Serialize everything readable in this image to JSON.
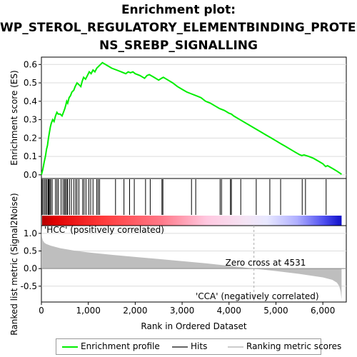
{
  "title_lines": [
    "Enrichment plot:",
    "WP_STEROL_REGULATORY_ELEMENTBINDING_PROTEI",
    "NS_SREBP_SIGNALLING"
  ],
  "colors": {
    "enrichment_line": "#00ee00",
    "hits": "#000000",
    "metric_fill": "#bebebe",
    "positive_label": "#ff0000",
    "negative_label": "#0000cc",
    "zero_line": "#aaaaaa"
  },
  "chart_data": [
    {
      "type": "line",
      "name": "enrichment-plot",
      "ylabel": "Enrichment score (ES)",
      "xlim": [
        0,
        6500
      ],
      "ylim": [
        -0.02,
        0.64
      ],
      "yticks": [
        0.0,
        0.1,
        0.2,
        0.3,
        0.4,
        0.5,
        0.6
      ],
      "ytick_labels": [
        "0.0",
        "0.1",
        "0.2",
        "0.3",
        "0.4",
        "0.5",
        "0.6"
      ],
      "grid": true,
      "series": [
        {
          "name": "Enrichment profile",
          "x": [
            0,
            30,
            60,
            85,
            110,
            130,
            150,
            170,
            190,
            210,
            240,
            270,
            300,
            330,
            360,
            400,
            440,
            470,
            500,
            520,
            540,
            560,
            590,
            620,
            650,
            690,
            720,
            760,
            800,
            840,
            870,
            900,
            940,
            980,
            1020,
            1060,
            1100,
            1140,
            1180,
            1220,
            1300,
            1400,
            1500,
            1600,
            1700,
            1750,
            1800,
            1850,
            1900,
            1950,
            2000,
            2100,
            2200,
            2250,
            2300,
            2400,
            2500,
            2560,
            2600,
            2700,
            2800,
            2900,
            3000,
            3100,
            3200,
            3300,
            3400,
            3500,
            3600,
            3700,
            3800,
            3900,
            4000,
            4050,
            4100,
            4200,
            4300,
            4400,
            4500,
            4600,
            4700,
            4800,
            4900,
            5000,
            5100,
            5200,
            5300,
            5400,
            5500,
            5550,
            5600,
            5700,
            5800,
            5900,
            6000,
            6060,
            6100,
            6200,
            6300,
            6400
          ],
          "y": [
            0.0,
            0.03,
            0.07,
            0.1,
            0.14,
            0.16,
            0.2,
            0.23,
            0.26,
            0.28,
            0.3,
            0.29,
            0.32,
            0.34,
            0.33,
            0.33,
            0.32,
            0.34,
            0.36,
            0.38,
            0.4,
            0.39,
            0.42,
            0.43,
            0.45,
            0.46,
            0.48,
            0.5,
            0.49,
            0.48,
            0.51,
            0.53,
            0.52,
            0.54,
            0.56,
            0.55,
            0.57,
            0.56,
            0.58,
            0.59,
            0.61,
            0.595,
            0.58,
            0.57,
            0.56,
            0.555,
            0.55,
            0.56,
            0.555,
            0.56,
            0.55,
            0.54,
            0.525,
            0.54,
            0.545,
            0.53,
            0.515,
            0.525,
            0.53,
            0.515,
            0.5,
            0.48,
            0.465,
            0.45,
            0.44,
            0.43,
            0.42,
            0.4,
            0.39,
            0.375,
            0.36,
            0.35,
            0.335,
            0.33,
            0.32,
            0.305,
            0.29,
            0.275,
            0.26,
            0.245,
            0.23,
            0.215,
            0.2,
            0.185,
            0.17,
            0.155,
            0.14,
            0.125,
            0.11,
            0.105,
            0.108,
            0.1,
            0.09,
            0.075,
            0.06,
            0.045,
            0.05,
            0.035,
            0.02,
            0.003
          ]
        }
      ]
    },
    {
      "type": "scatter",
      "name": "hits-rug",
      "xlim": [
        0,
        6500
      ],
      "x": [
        15,
        40,
        70,
        95,
        120,
        145,
        160,
        180,
        200,
        230,
        300,
        330,
        360,
        420,
        460,
        490,
        510,
        540,
        560,
        600,
        640,
        690,
        730,
        760,
        800,
        880,
        910,
        950,
        1010,
        1050,
        1100,
        1180,
        1210,
        1240,
        1580,
        1760,
        1880,
        1980,
        2220,
        2320,
        2570,
        2590,
        3200,
        3290,
        3810,
        3840,
        4030,
        4050,
        4250,
        4580,
        4870,
        5100,
        5560,
        5630,
        6070
      ]
    },
    {
      "type": "area",
      "name": "ranked-metric",
      "ylabel": "Ranked list metric (Signal2Noise)",
      "xlabel": "Rank in Ordered Dataset",
      "xlim": [
        0,
        6500
      ],
      "ylim": [
        -0.95,
        1.22
      ],
      "xticks": [
        0,
        1000,
        2000,
        3000,
        4000,
        5000,
        6000
      ],
      "xtick_labels": [
        "0",
        "1,000",
        "2,000",
        "3,000",
        "4,000",
        "5,000",
        "6,000"
      ],
      "yticks": [
        -0.5,
        0.0,
        0.5,
        1.0
      ],
      "ytick_labels": [
        "-0.5",
        "0.0",
        "0.5",
        "1.0"
      ],
      "x": [
        0,
        10,
        30,
        60,
        100,
        200,
        400,
        700,
        1000,
        1500,
        2000,
        2500,
        3000,
        3500,
        4000,
        4531,
        5000,
        5500,
        6000,
        6200,
        6300,
        6350,
        6380,
        6400
      ],
      "y": [
        1.22,
        0.9,
        0.8,
        0.74,
        0.7,
        0.65,
        0.58,
        0.51,
        0.46,
        0.39,
        0.33,
        0.27,
        0.21,
        0.15,
        0.08,
        0.0,
        -0.07,
        -0.15,
        -0.25,
        -0.32,
        -0.4,
        -0.5,
        -0.65,
        -0.88
      ],
      "annotations": {
        "zero_cross": "Zero cross at 4531",
        "zero_cross_x": 4531,
        "positive": "'HCC' (positively correlated)",
        "negative": "'CCA' (negatively correlated)"
      }
    }
  ],
  "legend": {
    "items": [
      {
        "label": "Enrichment profile",
        "color": "#00ee00"
      },
      {
        "label": "Hits",
        "color": "#000000"
      },
      {
        "label": "Ranking metric scores",
        "color": "#cccccc"
      }
    ]
  }
}
